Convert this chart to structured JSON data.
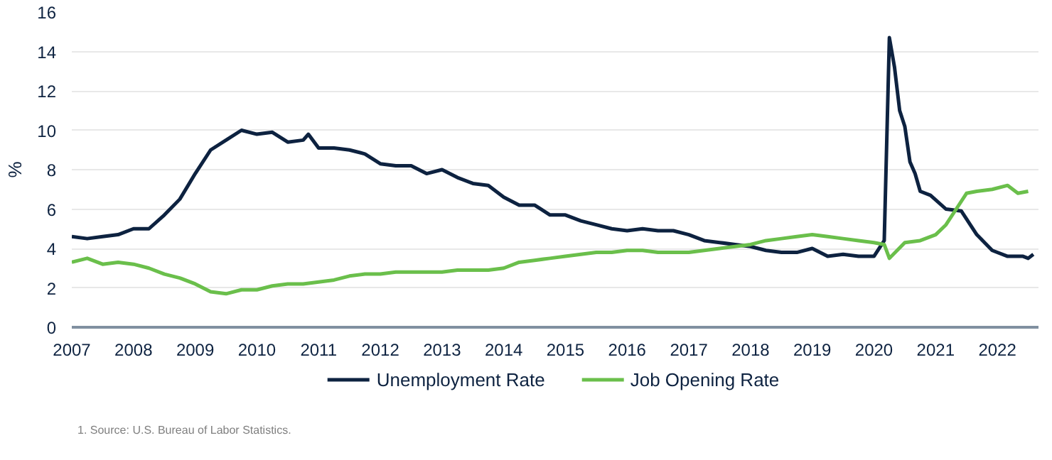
{
  "chart_data": {
    "type": "line",
    "ylabel": "%",
    "ylim": [
      0,
      16
    ],
    "yticks": [
      0,
      2,
      4,
      6,
      8,
      10,
      12,
      14,
      16
    ],
    "xlim": [
      "2007-01",
      "2022-09"
    ],
    "xticks": [
      {
        "value": "2007-01",
        "label": "2007"
      },
      {
        "value": "2008-01",
        "label": "2008"
      },
      {
        "value": "2009-01",
        "label": "2009"
      },
      {
        "value": "2010-01",
        "label": "2010"
      },
      {
        "value": "2011-01",
        "label": "2011"
      },
      {
        "value": "2012-01",
        "label": "2012"
      },
      {
        "value": "2013-01",
        "label": "2013"
      },
      {
        "value": "2014-01",
        "label": "2014"
      },
      {
        "value": "2015-01",
        "label": "2015"
      },
      {
        "value": "2016-01",
        "label": "2016"
      },
      {
        "value": "2017-01",
        "label": "2017"
      },
      {
        "value": "2018-01",
        "label": "2018"
      },
      {
        "value": "2019-01",
        "label": "2019"
      },
      {
        "value": "2020-01",
        "label": "2020"
      },
      {
        "value": "2021-01",
        "label": "2021"
      },
      {
        "value": "2022-01",
        "label": "2022"
      }
    ],
    "grid": "y",
    "legend": "bottom",
    "marker": "none",
    "line_style": "solid",
    "annotations": [
      "1.  Source: U.S. Bureau of Labor Statistics."
    ],
    "series": [
      {
        "name": "Unemployment Rate",
        "color": "#0d2240",
        "x": [
          "2007-01",
          "2007-04",
          "2007-07",
          "2007-10",
          "2008-01",
          "2008-04",
          "2008-07",
          "2008-10",
          "2009-01",
          "2009-04",
          "2009-07",
          "2009-10",
          "2010-01",
          "2010-04",
          "2010-07",
          "2010-10",
          "2010-11",
          "2011-01",
          "2011-04",
          "2011-07",
          "2011-10",
          "2012-01",
          "2012-04",
          "2012-07",
          "2012-10",
          "2013-01",
          "2013-04",
          "2013-07",
          "2013-10",
          "2014-01",
          "2014-04",
          "2014-07",
          "2014-10",
          "2015-01",
          "2015-04",
          "2015-07",
          "2015-10",
          "2016-01",
          "2016-04",
          "2016-07",
          "2016-10",
          "2017-01",
          "2017-04",
          "2017-07",
          "2017-10",
          "2018-01",
          "2018-04",
          "2018-07",
          "2018-10",
          "2019-01",
          "2019-04",
          "2019-07",
          "2019-10",
          "2020-01",
          "2020-03",
          "2020-04",
          "2020-05",
          "2020-06",
          "2020-07",
          "2020-08",
          "2020-09",
          "2020-10",
          "2020-12",
          "2021-03",
          "2021-06",
          "2021-09",
          "2021-12",
          "2022-03",
          "2022-06",
          "2022-07",
          "2022-08"
        ],
        "values": [
          4.6,
          4.5,
          4.6,
          4.7,
          5.0,
          5.0,
          5.7,
          6.5,
          7.8,
          9.0,
          9.5,
          10.0,
          9.8,
          9.9,
          9.4,
          9.5,
          9.8,
          9.1,
          9.1,
          9.0,
          8.8,
          8.3,
          8.2,
          8.2,
          7.8,
          8.0,
          7.6,
          7.3,
          7.2,
          6.6,
          6.2,
          6.2,
          5.7,
          5.7,
          5.4,
          5.2,
          5.0,
          4.9,
          5.0,
          4.9,
          4.9,
          4.7,
          4.4,
          4.3,
          4.2,
          4.1,
          3.9,
          3.8,
          3.8,
          4.0,
          3.6,
          3.7,
          3.6,
          3.6,
          4.4,
          14.7,
          13.2,
          11.0,
          10.2,
          8.4,
          7.8,
          6.9,
          6.7,
          6.0,
          5.9,
          4.7,
          3.9,
          3.6,
          3.6,
          3.5,
          3.7
        ]
      },
      {
        "name": "Job Opening Rate",
        "color": "#6abf4b",
        "x": [
          "2007-01",
          "2007-04",
          "2007-07",
          "2007-10",
          "2008-01",
          "2008-04",
          "2008-07",
          "2008-10",
          "2009-01",
          "2009-04",
          "2009-07",
          "2009-10",
          "2010-01",
          "2010-04",
          "2010-07",
          "2010-10",
          "2011-01",
          "2011-04",
          "2011-07",
          "2011-10",
          "2012-01",
          "2012-04",
          "2012-07",
          "2012-10",
          "2013-01",
          "2013-04",
          "2013-07",
          "2013-10",
          "2014-01",
          "2014-04",
          "2014-07",
          "2014-10",
          "2015-01",
          "2015-04",
          "2015-07",
          "2015-10",
          "2016-01",
          "2016-04",
          "2016-07",
          "2016-10",
          "2017-01",
          "2017-04",
          "2017-07",
          "2017-10",
          "2018-01",
          "2018-04",
          "2018-07",
          "2018-10",
          "2019-01",
          "2019-04",
          "2019-07",
          "2019-10",
          "2020-01",
          "2020-03",
          "2020-04",
          "2020-07",
          "2020-10",
          "2021-01",
          "2021-03",
          "2021-05",
          "2021-07",
          "2021-09",
          "2021-12",
          "2022-03",
          "2022-05",
          "2022-07"
        ],
        "values": [
          3.3,
          3.5,
          3.2,
          3.3,
          3.2,
          3.0,
          2.7,
          2.5,
          2.2,
          1.8,
          1.7,
          1.9,
          1.9,
          2.1,
          2.2,
          2.2,
          2.3,
          2.4,
          2.6,
          2.7,
          2.7,
          2.8,
          2.8,
          2.8,
          2.8,
          2.9,
          2.9,
          2.9,
          3.0,
          3.3,
          3.4,
          3.5,
          3.6,
          3.7,
          3.8,
          3.8,
          3.9,
          3.9,
          3.8,
          3.8,
          3.8,
          3.9,
          4.0,
          4.1,
          4.2,
          4.4,
          4.5,
          4.6,
          4.7,
          4.6,
          4.5,
          4.4,
          4.3,
          4.2,
          3.5,
          4.3,
          4.4,
          4.7,
          5.2,
          6.0,
          6.8,
          6.9,
          7.0,
          7.2,
          6.8,
          6.9
        ]
      }
    ]
  }
}
